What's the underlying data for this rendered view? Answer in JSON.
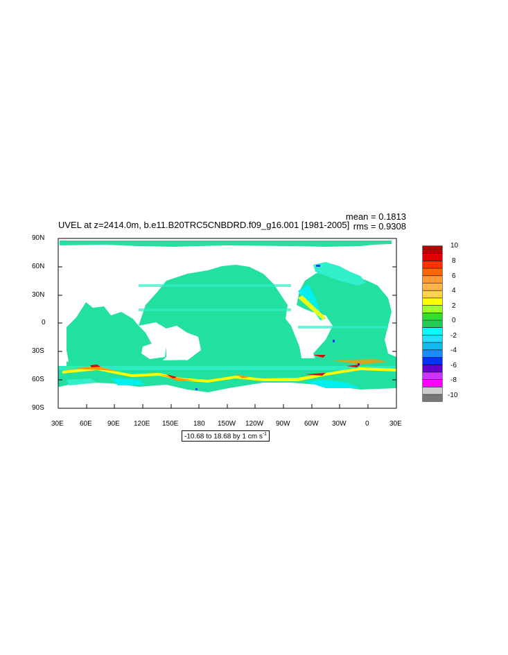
{
  "figure": {
    "title": "UVEL at z=2414.0m, b.e11.B20TRC5CNBDRD.f09_g16.001 [1981-2005]",
    "mean_label": "mean = 0.1813",
    "rms_label": "rms = 0.9308",
    "range_text": "-10.68 to 18.68 by 1 cm s",
    "range_sup": "-1"
  },
  "axes": {
    "x_ticks": [
      "30E",
      "60E",
      "90E",
      "120E",
      "150E",
      "180",
      "150W",
      "120W",
      "90W",
      "60W",
      "30W",
      "0",
      "30E"
    ],
    "y_ticks": [
      "90N",
      "60N",
      "30N",
      "0",
      "30S",
      "60S",
      "90S"
    ]
  },
  "colorbar": {
    "labels": [
      "10",
      "8",
      "6",
      "4",
      "2",
      "0",
      "-2",
      "-4",
      "-6",
      "-8",
      "-10"
    ],
    "colors": [
      "#b30000",
      "#e00000",
      "#ff3300",
      "#ff6600",
      "#ff9933",
      "#ffb347",
      "#ffd24d",
      "#ffff00",
      "#99ff33",
      "#33dd33",
      "#22cc55",
      "#00ffff",
      "#22ddff",
      "#11bbee",
      "#1a8cff",
      "#0033ff",
      "#6600cc",
      "#cc33ff",
      "#ff00ff",
      "#cccccc",
      "#777777"
    ]
  },
  "map_colors": {
    "ocean_main": "#22e0a0",
    "ocean_light": "#2ff0c8",
    "cyan": "#00f0f0",
    "yellow": "#ffff00",
    "orange": "#ff9900",
    "red": "#e00000",
    "blue": "#1a40ff"
  }
}
